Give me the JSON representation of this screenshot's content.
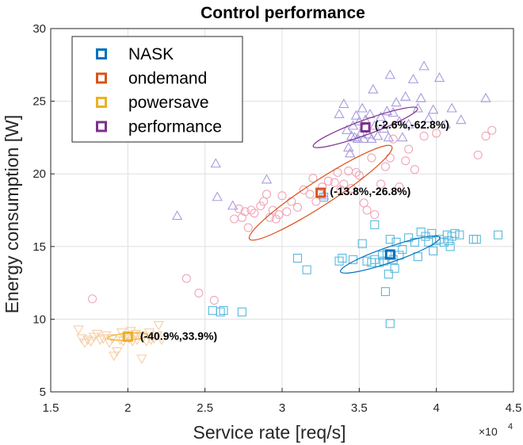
{
  "chart_data": {
    "type": "scatter",
    "title": "Control performance",
    "xlabel": "Service rate [req/s]",
    "ylabel": "Energy consumption [W]",
    "x_exponent_label": "×10",
    "x_exponent_power": "4",
    "xlim": [
      1.5,
      4.5
    ],
    "ylim": [
      5,
      30
    ],
    "xticks": [
      "1.5",
      "2",
      "2.5",
      "3",
      "3.5",
      "4",
      "4.5"
    ],
    "yticks": [
      "5",
      "10",
      "15",
      "20",
      "25",
      "30"
    ],
    "legend_position": "top-left",
    "series": [
      {
        "name": "NASK",
        "color": "#0072BD",
        "light_color": "#59b9dd",
        "marker": "square",
        "mean": [
          3.7,
          14.45
        ],
        "ellipse": {
          "angle_deg": 19,
          "rx": 0.34,
          "ry": 0.05
        },
        "points": [
          [
            2.55,
            10.6
          ],
          [
            2.6,
            10.5
          ],
          [
            2.62,
            10.6
          ],
          [
            2.74,
            10.5
          ],
          [
            3.1,
            14.2
          ],
          [
            3.16,
            13.4
          ],
          [
            3.27,
            18.4
          ],
          [
            3.37,
            14.0
          ],
          [
            3.39,
            14.2
          ],
          [
            3.46,
            14.1
          ],
          [
            3.52,
            15.2
          ],
          [
            3.55,
            14.0
          ],
          [
            3.58,
            13.9
          ],
          [
            3.6,
            14.1
          ],
          [
            3.6,
            16.5
          ],
          [
            3.63,
            13.9
          ],
          [
            3.65,
            14.4
          ],
          [
            3.66,
            14.0
          ],
          [
            3.67,
            11.9
          ],
          [
            3.68,
            14.5
          ],
          [
            3.69,
            13.1
          ],
          [
            3.7,
            9.7
          ],
          [
            3.7,
            15.5
          ],
          [
            3.72,
            14.1
          ],
          [
            3.73,
            13.5
          ],
          [
            3.74,
            15.3
          ],
          [
            3.76,
            14.4
          ],
          [
            3.78,
            14.8
          ],
          [
            3.82,
            15.6
          ],
          [
            3.86,
            15.3
          ],
          [
            3.88,
            14.3
          ],
          [
            3.9,
            16.0
          ],
          [
            3.93,
            15.7
          ],
          [
            3.95,
            15.3
          ],
          [
            3.97,
            15.9
          ],
          [
            3.98,
            14.7
          ],
          [
            4.0,
            15.4
          ],
          [
            4.02,
            15.5
          ],
          [
            4.05,
            15.3
          ],
          [
            4.07,
            15.8
          ],
          [
            4.08,
            15.4
          ],
          [
            4.09,
            15.0
          ],
          [
            4.1,
            15.7
          ],
          [
            4.12,
            15.9
          ],
          [
            4.15,
            15.8
          ],
          [
            4.24,
            15.5
          ],
          [
            4.26,
            15.5
          ],
          [
            4.4,
            15.8
          ]
        ]
      },
      {
        "name": "ondemand",
        "color": "#D95319",
        "light_color": "#f0a5b8",
        "marker": "circle",
        "mean": [
          3.25,
          18.7
        ],
        "ellipse": {
          "angle_deg": 33,
          "rx": 0.55,
          "ry": 0.08
        },
        "points": [
          [
            1.77,
            11.4
          ],
          [
            2.38,
            12.8
          ],
          [
            2.46,
            11.8
          ],
          [
            2.56,
            11.3
          ],
          [
            2.69,
            16.9
          ],
          [
            2.72,
            17.6
          ],
          [
            2.74,
            17.0
          ],
          [
            2.76,
            17.4
          ],
          [
            2.78,
            16.3
          ],
          [
            2.8,
            17.5
          ],
          [
            2.82,
            17.3
          ],
          [
            2.86,
            17.8
          ],
          [
            2.88,
            18.1
          ],
          [
            2.9,
            18.6
          ],
          [
            2.92,
            17.0
          ],
          [
            2.94,
            17.5
          ],
          [
            2.96,
            16.9
          ],
          [
            2.98,
            17.2
          ],
          [
            3.0,
            18.5
          ],
          [
            3.03,
            17.4
          ],
          [
            3.06,
            18.1
          ],
          [
            3.1,
            17.7
          ],
          [
            3.14,
            18.9
          ],
          [
            3.18,
            18.6
          ],
          [
            3.2,
            19.7
          ],
          [
            3.22,
            18.1
          ],
          [
            3.26,
            19.1
          ],
          [
            3.3,
            19.5
          ],
          [
            3.34,
            19.4
          ],
          [
            3.36,
            20.1
          ],
          [
            3.38,
            18.9
          ],
          [
            3.4,
            19.3
          ],
          [
            3.43,
            20.2
          ],
          [
            3.45,
            19.0
          ],
          [
            3.48,
            20.1
          ],
          [
            3.5,
            19.9
          ],
          [
            3.53,
            18.0
          ],
          [
            3.55,
            17.5
          ],
          [
            3.58,
            21.1
          ],
          [
            3.6,
            17.2
          ],
          [
            3.64,
            19.3
          ],
          [
            3.67,
            20.5
          ],
          [
            3.7,
            21.1
          ],
          [
            3.72,
            22.4
          ],
          [
            3.76,
            19.1
          ],
          [
            3.8,
            20.9
          ],
          [
            3.82,
            21.7
          ],
          [
            3.86,
            20.3
          ],
          [
            3.92,
            22.6
          ],
          [
            4.0,
            22.8
          ],
          [
            4.27,
            21.3
          ],
          [
            4.32,
            22.6
          ],
          [
            4.36,
            23.0
          ]
        ]
      },
      {
        "name": "powersave",
        "color": "#EDB120",
        "light_color": "#f5cfa8",
        "marker": "triangle-down",
        "mean": [
          2.0,
          8.8
        ],
        "ellipse": {
          "angle_deg": 4,
          "rx": 0.13,
          "ry": 0.022
        },
        "points": [
          [
            1.68,
            9.3
          ],
          [
            1.7,
            8.7
          ],
          [
            1.72,
            8.4
          ],
          [
            1.74,
            8.6
          ],
          [
            1.76,
            8.5
          ],
          [
            1.78,
            8.8
          ],
          [
            1.8,
            9.0
          ],
          [
            1.82,
            8.6
          ],
          [
            1.84,
            8.7
          ],
          [
            1.86,
            8.9
          ],
          [
            1.88,
            8.4
          ],
          [
            1.9,
            8.7
          ],
          [
            1.91,
            7.5
          ],
          [
            1.93,
            7.8
          ],
          [
            1.95,
            8.6
          ],
          [
            1.96,
            9.1
          ],
          [
            1.97,
            8.5
          ],
          [
            1.99,
            8.8
          ],
          [
            2.01,
            8.7
          ],
          [
            2.02,
            9.2
          ],
          [
            2.03,
            8.5
          ],
          [
            2.05,
            9.0
          ],
          [
            2.06,
            8.6
          ],
          [
            2.08,
            8.9
          ],
          [
            2.09,
            7.3
          ],
          [
            2.1,
            8.8
          ],
          [
            2.12,
            8.5
          ],
          [
            2.14,
            9.1
          ],
          [
            2.15,
            8.6
          ],
          [
            2.17,
            8.7
          ],
          [
            2.19,
            8.9
          ],
          [
            2.2,
            9.6
          ],
          [
            2.22,
            8.6
          ]
        ]
      },
      {
        "name": "performance",
        "color": "#7E2F8E",
        "light_color": "#a89bde",
        "marker": "triangle-up",
        "mean": [
          3.54,
          23.2
        ],
        "ellipse": {
          "angle_deg": 20,
          "rx": 0.36,
          "ry": 0.048
        },
        "points": [
          [
            2.32,
            17.1
          ],
          [
            2.57,
            20.7
          ],
          [
            2.58,
            18.4
          ],
          [
            2.68,
            17.8
          ],
          [
            2.9,
            19.6
          ],
          [
            3.27,
            18.5
          ],
          [
            3.37,
            24.1
          ],
          [
            3.4,
            24.8
          ],
          [
            3.42,
            23.0
          ],
          [
            3.43,
            21.8
          ],
          [
            3.44,
            21.4
          ],
          [
            3.45,
            22.6
          ],
          [
            3.46,
            23.3
          ],
          [
            3.47,
            22.5
          ],
          [
            3.48,
            24.0
          ],
          [
            3.49,
            22.4
          ],
          [
            3.5,
            23.6
          ],
          [
            3.51,
            22.8
          ],
          [
            3.52,
            24.5
          ],
          [
            3.53,
            22.4
          ],
          [
            3.54,
            23.7
          ],
          [
            3.56,
            22.7
          ],
          [
            3.57,
            24.1
          ],
          [
            3.58,
            22.4
          ],
          [
            3.59,
            25.8
          ],
          [
            3.6,
            23.3
          ],
          [
            3.62,
            22.6
          ],
          [
            3.64,
            23.9
          ],
          [
            3.66,
            23.1
          ],
          [
            3.68,
            24.3
          ],
          [
            3.69,
            22.5
          ],
          [
            3.7,
            26.8
          ],
          [
            3.72,
            24.2
          ],
          [
            3.74,
            24.9
          ],
          [
            3.76,
            23.6
          ],
          [
            3.78,
            22.5
          ],
          [
            3.8,
            25.3
          ],
          [
            3.82,
            23.4
          ],
          [
            3.85,
            26.5
          ],
          [
            3.88,
            24.5
          ],
          [
            3.9,
            25.2
          ],
          [
            3.92,
            27.4
          ],
          [
            3.95,
            23.8
          ],
          [
            3.98,
            24.4
          ],
          [
            4.02,
            26.6
          ],
          [
            4.06,
            23.4
          ],
          [
            4.1,
            24.5
          ],
          [
            4.16,
            23.7
          ],
          [
            4.32,
            25.2
          ]
        ]
      }
    ],
    "annotations": [
      {
        "text": "(-40.9%,33.9%)",
        "x": 2.08,
        "y": 8.85
      },
      {
        "text": "(-13.8%,-26.8%)",
        "x": 3.31,
        "y": 18.8
      },
      {
        "text": "(-2.6%,-62.8%)",
        "x": 3.6,
        "y": 23.4
      }
    ]
  }
}
